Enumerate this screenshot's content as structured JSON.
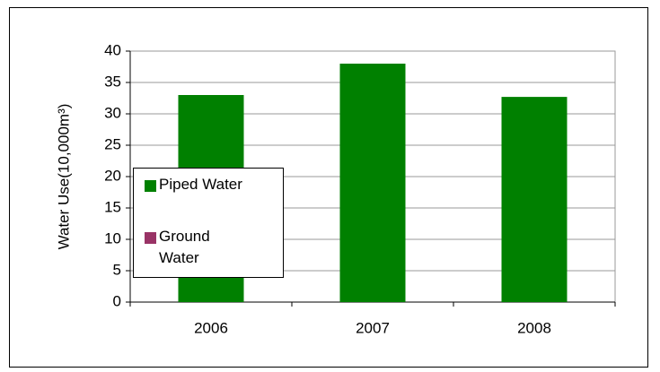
{
  "chart_data": {
    "type": "bar",
    "stacked": true,
    "y_label": "Water Use(10,000m³)",
    "categories": [
      "2006",
      "2007",
      "2008"
    ],
    "series": [
      {
        "name": "Piped Water",
        "color": "#008000",
        "values": [
          33,
          38,
          32.7
        ]
      },
      {
        "name": "Ground Water",
        "color": "#993366",
        "values": [
          0,
          0,
          0
        ]
      }
    ],
    "ylim": [
      0,
      40
    ],
    "yticks": [
      0,
      5,
      10,
      15,
      20,
      25,
      30,
      35,
      40
    ],
    "grid": true,
    "legend": "left"
  }
}
